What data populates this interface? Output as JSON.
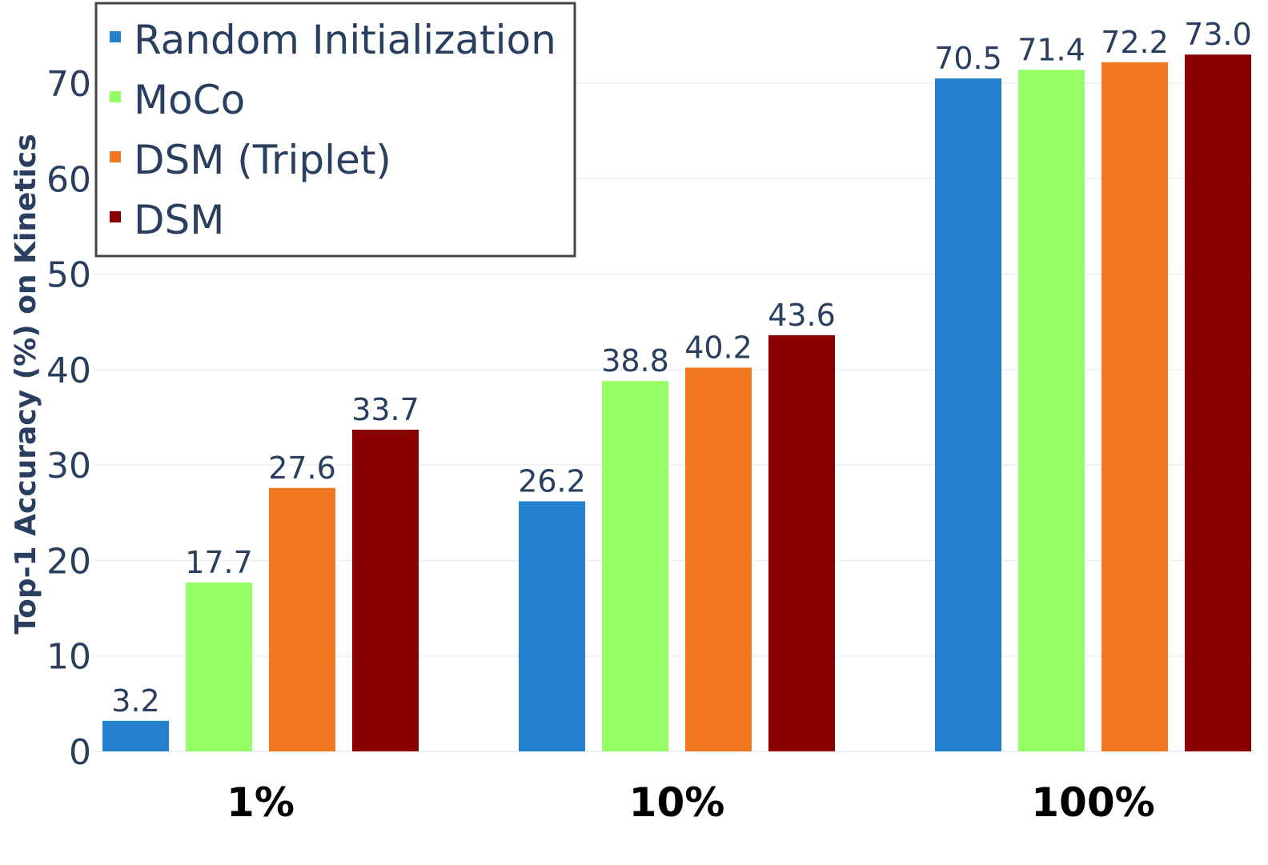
{
  "chart_data": {
    "type": "bar",
    "ylabel": "Top-1 Accuracy (%) on Kinetics",
    "xlabel": "",
    "categories": [
      "1%",
      "10%",
      "100%"
    ],
    "ylim": [
      0,
      77
    ],
    "yticks": [
      0,
      10,
      20,
      30,
      40,
      50,
      60,
      70
    ],
    "grid": true,
    "legend_position": "top-left",
    "series": [
      {
        "name": "Random Initialization",
        "color": "#2280cd",
        "values": [
          3.2,
          26.2,
          70.5
        ],
        "labels": [
          "3.2",
          "26.2",
          "70.5"
        ]
      },
      {
        "name": "MoCo",
        "color": "#95ff66",
        "values": [
          17.7,
          38.8,
          71.4
        ],
        "labels": [
          "17.7",
          "38.8",
          "71.4"
        ]
      },
      {
        "name": "DSM (Triplet)",
        "color": "#f27820",
        "values": [
          27.6,
          40.2,
          72.2
        ],
        "labels": [
          "27.6",
          "40.2",
          "72.2"
        ]
      },
      {
        "name": "DSM",
        "color": "#8a0000",
        "values": [
          33.7,
          43.6,
          73.0
        ],
        "labels": [
          "33.7",
          "43.6",
          "73.0"
        ]
      }
    ]
  }
}
